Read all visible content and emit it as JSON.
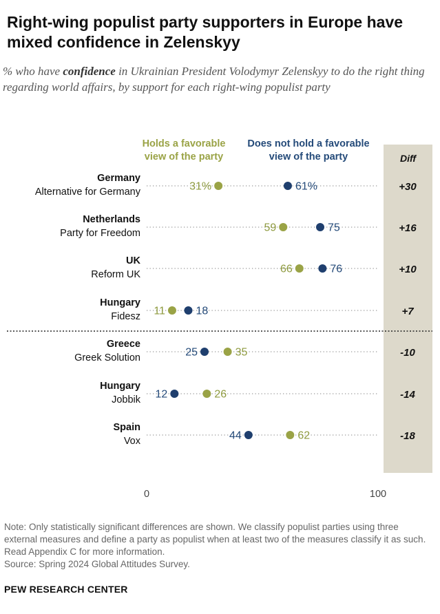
{
  "title": "Right-wing populist party supporters in Europe have mixed confidence in Zelenskyy",
  "subtitle": {
    "pre": "% who have ",
    "emph": "confidence",
    "post": " in Ukrainian President Volodymyr Zelenskyy to do the right thing regarding world affairs, by support for each right-wing populist party"
  },
  "legend": {
    "favorable": "Holds a favorable view of the party",
    "not_favorable": "Does not hold a favorable view of the party"
  },
  "diff_header": "Diff",
  "colors": {
    "favorable": "#9aa346",
    "not_favorable": "#1f3f6e",
    "diff_bg": "#ddd9cb"
  },
  "chart_data": {
    "type": "dot",
    "xlim": [
      0,
      100
    ],
    "x_ticks": [
      "0",
      "100"
    ],
    "series": [
      {
        "name": "Holds a favorable view of the party"
      },
      {
        "name": "Does not hold a favorable view of the party"
      }
    ],
    "rows": [
      {
        "country": "Germany",
        "party": "Alternative for Germany",
        "favorable": 31,
        "not_favorable": 61,
        "fav_label": "31%",
        "nonfav_label": "61%",
        "diff": "+30"
      },
      {
        "country": "Netherlands",
        "party": "Party for Freedom",
        "favorable": 59,
        "not_favorable": 75,
        "fav_label": "59",
        "nonfav_label": "75",
        "diff": "+16"
      },
      {
        "country": "UK",
        "party": "Reform UK",
        "favorable": 66,
        "not_favorable": 76,
        "fav_label": "66",
        "nonfav_label": "76",
        "diff": "+10"
      },
      {
        "country": "Hungary",
        "party": "Fidesz",
        "favorable": 11,
        "not_favorable": 18,
        "fav_label": "11",
        "nonfav_label": "18",
        "diff": "+7"
      },
      {
        "country": "Greece",
        "party": "Greek Solution",
        "favorable": 35,
        "not_favorable": 25,
        "fav_label": "35",
        "nonfav_label": "25",
        "diff": "-10"
      },
      {
        "country": "Hungary",
        "party": "Jobbik",
        "favorable": 26,
        "not_favorable": 12,
        "fav_label": "26",
        "nonfav_label": "12",
        "diff": "-14"
      },
      {
        "country": "Spain",
        "party": "Vox",
        "favorable": 62,
        "not_favorable": 44,
        "fav_label": "62",
        "nonfav_label": "44",
        "diff": "-18"
      }
    ]
  },
  "note": "Note: Only statistically significant differences are shown. We classify populist parties using three external measures and define a party as populist when at least two of the measures classify it as such. Read Appendix C for more information.",
  "source": "Source: Spring 2024 Global Attitudes Survey.",
  "brand": "PEW RESEARCH CENTER"
}
